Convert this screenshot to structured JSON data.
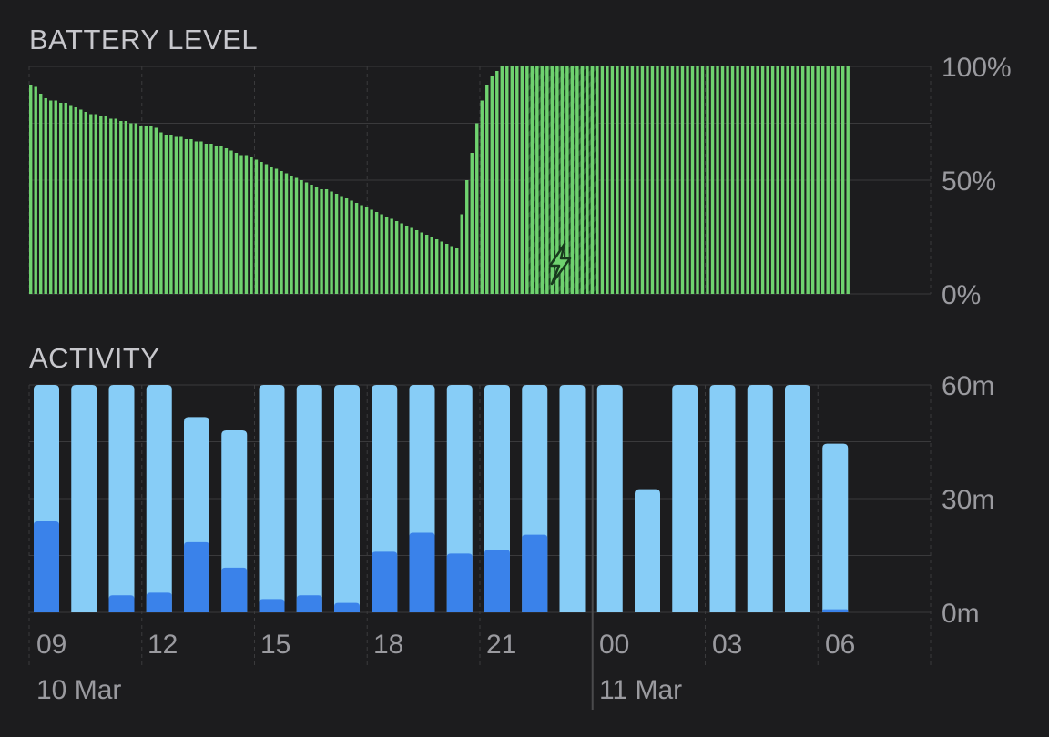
{
  "battery": {
    "title": "BATTERY LEVEL",
    "y_ticks": [
      "100%",
      "50%",
      "0%"
    ]
  },
  "activity": {
    "title": "ACTIVITY",
    "y_ticks": [
      "60m",
      "30m",
      "0m"
    ]
  },
  "x_ticks": [
    "09",
    "12",
    "15",
    "18",
    "21",
    "00",
    "03",
    "06"
  ],
  "dates": [
    "10 Mar",
    "11 Mar"
  ],
  "colors": {
    "background": "#1c1c1e",
    "battery_fill": "#6fd26f",
    "charging_hatch": "#2f5a35",
    "activity_light": "#87cdf7",
    "activity_dark": "#3a82ea",
    "grid": "#3a3a3c"
  },
  "chart_data": [
    {
      "type": "bar",
      "title": "BATTERY LEVEL",
      "ylim": [
        0,
        100
      ],
      "y_unit": "%",
      "x_start": "09:00 10 Mar",
      "interval_minutes": 15,
      "charging_starts_at_index": 63,
      "values": [
        92,
        91,
        88,
        86,
        85,
        85,
        84,
        84,
        83,
        82,
        81,
        80,
        79,
        79,
        78,
        78,
        77,
        77,
        76,
        76,
        75,
        75,
        74,
        74,
        74,
        73,
        71,
        70,
        70,
        69,
        69,
        68,
        68,
        67,
        67,
        66,
        66,
        65,
        65,
        64,
        63,
        62,
        61,
        61,
        60,
        59,
        58,
        57,
        56,
        55,
        54,
        53,
        52,
        51,
        50,
        49,
        48,
        47,
        46,
        46,
        45,
        44,
        43,
        42,
        41,
        40,
        39,
        38,
        37,
        36,
        35,
        34,
        33,
        32,
        31,
        30,
        29,
        28,
        27,
        26,
        25,
        24,
        23,
        22,
        21,
        20,
        35,
        50,
        62,
        75,
        85,
        92,
        96,
        98,
        100,
        100,
        100,
        100,
        100,
        100,
        100,
        100,
        100,
        100,
        100,
        100,
        100,
        100,
        100,
        100,
        100,
        100,
        100,
        100,
        100,
        100,
        100,
        100,
        100,
        100,
        100,
        100,
        100,
        100,
        100,
        100,
        100,
        100,
        100,
        100,
        100,
        100,
        100,
        100,
        100,
        100,
        100,
        100,
        100,
        100,
        100,
        100,
        100,
        100,
        100,
        100,
        100,
        100,
        100,
        100,
        100,
        100,
        100,
        100,
        100,
        100,
        100,
        100,
        100,
        100,
        100,
        100,
        100,
        100
      ]
    },
    {
      "type": "bar",
      "title": "ACTIVITY",
      "ylim": [
        0,
        60
      ],
      "y_unit": "m",
      "categories": [
        "09",
        "10",
        "11",
        "12",
        "13",
        "14",
        "15",
        "16",
        "17",
        "18",
        "19",
        "20",
        "21",
        "22",
        "23",
        "00",
        "01",
        "02",
        "03",
        "04",
        "05",
        "06"
      ],
      "series": [
        {
          "values": [
            60,
            60,
            60,
            60,
            51.5,
            48,
            60,
            60,
            60,
            60,
            60,
            60,
            60,
            60,
            60,
            60,
            32.5,
            60,
            60,
            60,
            60,
            44.5
          ]
        },
        {
          "values": [
            24,
            0,
            4.5,
            5.2,
            18.5,
            11.8,
            3.5,
            4.5,
            2.5,
            16,
            21,
            15.5,
            16.5,
            20.5,
            0,
            0,
            0,
            0,
            0,
            0,
            0,
            0.8
          ]
        }
      ]
    }
  ]
}
